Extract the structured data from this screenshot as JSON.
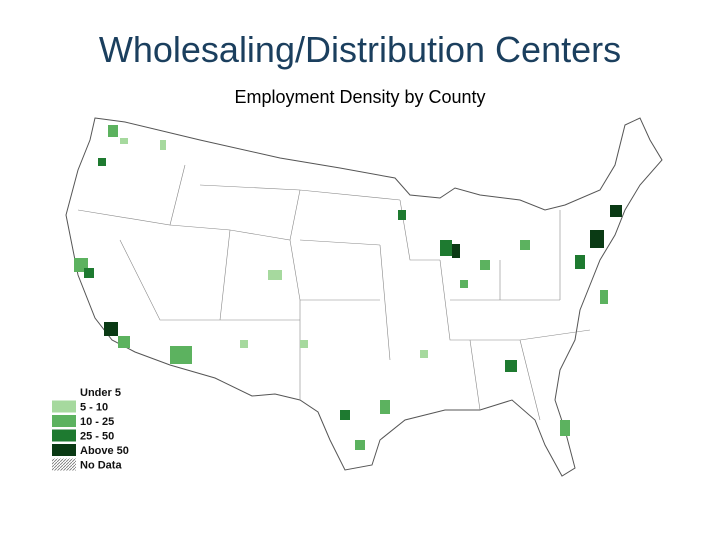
{
  "header": {
    "title": "Wholesaling/Distribution Centers",
    "subtitle": "Employment Density by County"
  },
  "legend": [
    {
      "label": "Under 5",
      "color": "#ffffff"
    },
    {
      "label": "5 - 10",
      "color": "#a6d99e"
    },
    {
      "label": "10 - 25",
      "color": "#5cb25f"
    },
    {
      "label": "25 - 50",
      "color": "#1e7a30"
    },
    {
      "label": "Above 50",
      "color": "#0a3a14"
    },
    {
      "label": "No Data",
      "color": "hatch"
    }
  ]
}
